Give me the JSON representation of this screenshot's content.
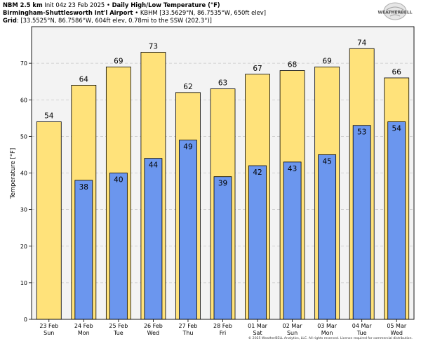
{
  "header": {
    "model": "NBM 2.5 km",
    "init": "Init 04z 23 Feb 2025",
    "sep": "•",
    "product": "Daily High/Low Temperature (°F)",
    "station_name": "Birmingham-Shuttlesworth Int'l Airport",
    "station_info": "KBHM [33.5629°N, 86.7535°W, 650ft elev]",
    "grid_label": "Grid",
    "grid_info": "[33.5525°N, 86.7586°W, 604ft elev, 0.78mi to the SSW (202.3°)]"
  },
  "logo": {
    "text": "WEATHERBELL"
  },
  "footer": {
    "text": "© 2025 WeatherBELL Analytics, LLC. All rights reserved. License required for commercial distribution."
  },
  "colors": {
    "high": "#ffe27a",
    "low": "#6b96ee",
    "plot_bg": "#f3f3f3",
    "grid": "#c8c8c8",
    "border": "#000000"
  },
  "chart_data": {
    "type": "bar",
    "ylabel": "Temperature [°F]",
    "ylim": [
      0,
      80
    ],
    "yticks": [
      0,
      10,
      20,
      30,
      40,
      50,
      60,
      70
    ],
    "grid": true,
    "categories": [
      {
        "date": "23 Feb",
        "day": "Sun"
      },
      {
        "date": "24 Feb",
        "day": "Mon"
      },
      {
        "date": "25 Feb",
        "day": "Tue"
      },
      {
        "date": "26 Feb",
        "day": "Wed"
      },
      {
        "date": "27 Feb",
        "day": "Thu"
      },
      {
        "date": "28 Feb",
        "day": "Fri"
      },
      {
        "date": "01 Mar",
        "day": "Sat"
      },
      {
        "date": "02 Mar",
        "day": "Sun"
      },
      {
        "date": "03 Mar",
        "day": "Mon"
      },
      {
        "date": "04 Mar",
        "day": "Tue"
      },
      {
        "date": "05 Mar",
        "day": "Wed"
      }
    ],
    "series": [
      {
        "key": "high",
        "values": [
          54,
          64,
          69,
          73,
          62,
          63,
          67,
          68,
          69,
          74,
          66
        ]
      },
      {
        "key": "low",
        "values": [
          null,
          38,
          40,
          44,
          49,
          39,
          42,
          43,
          45,
          53,
          54
        ]
      }
    ]
  }
}
